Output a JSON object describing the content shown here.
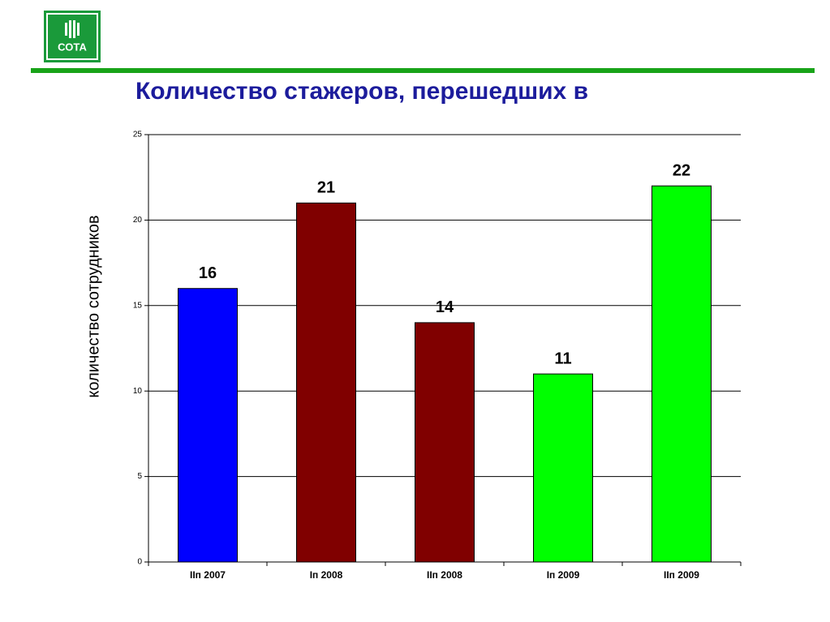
{
  "logo": "СОТА",
  "chart_data": {
    "type": "bar",
    "title": "Количество стажеров, перешедших в",
    "y_label": "количество сотрудников",
    "categories": [
      "IIп 2007",
      "Iп 2008",
      "IIп 2008",
      "Iп 2009",
      "IIп 2009"
    ],
    "values": [
      16,
      21,
      14,
      11,
      22
    ],
    "colors": [
      "#0000ff",
      "#800000",
      "#800000",
      "#00ff00",
      "#00ff00"
    ],
    "ylim": [
      0,
      25
    ],
    "yticks": [
      0,
      5,
      10,
      15,
      20,
      25
    ],
    "grid": true
  }
}
